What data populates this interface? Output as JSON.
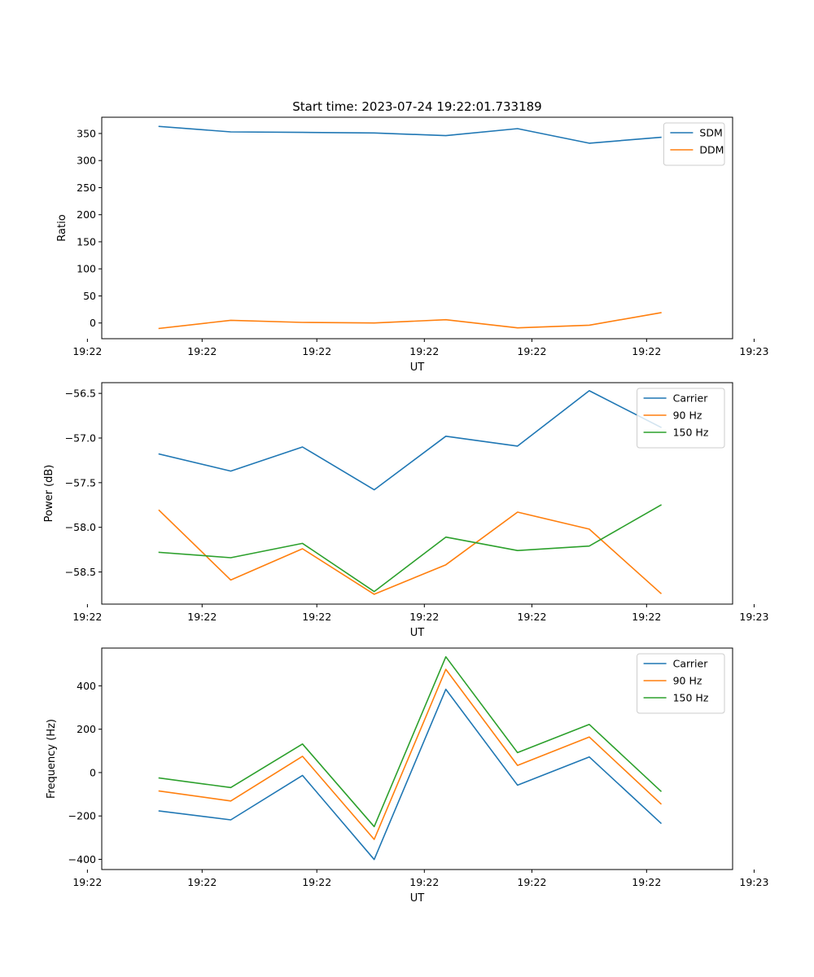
{
  "figure": {
    "title": "Start time: 2023-07-24 19:22:01.733189"
  },
  "colors": {
    "c0": "#1f77b4",
    "c1": "#ff7f0e",
    "c2": "#2ca02c"
  },
  "chart_data": [
    {
      "type": "line",
      "title": "Start time: 2023-07-24 19:22:01.733189",
      "xlabel": "UT",
      "ylabel": "Ratio",
      "x": [
        1,
        2,
        3,
        4,
        5,
        6,
        7,
        8
      ],
      "xlim": [
        0.2,
        9.0
      ],
      "xticks": [
        0.0,
        1.6,
        3.2,
        4.7,
        6.2,
        7.8,
        9.3
      ],
      "xticklabels": [
        "19:22",
        "19:22",
        "19:22",
        "19:22",
        "19:22",
        "19:22",
        "19:23"
      ],
      "ylim": [
        -29,
        380
      ],
      "yticks": [
        0,
        50,
        100,
        150,
        200,
        250,
        300,
        350
      ],
      "yticklabels": [
        "0",
        "50",
        "100",
        "150",
        "200",
        "250",
        "300",
        "350"
      ],
      "legend_position": "upper right",
      "series": [
        {
          "name": "SDM",
          "color": "#1f77b4",
          "values": [
            363,
            353,
            352,
            351,
            346,
            359,
            332,
            343
          ]
        },
        {
          "name": "DDM",
          "color": "#ff7f0e",
          "values": [
            -10,
            5,
            1,
            0,
            6,
            -9,
            -4,
            19
          ]
        }
      ]
    },
    {
      "type": "line",
      "title": "",
      "xlabel": "UT",
      "ylabel": "Power (dB)",
      "x": [
        1,
        2,
        3,
        4,
        5,
        6,
        7,
        8
      ],
      "xlim": [
        0.2,
        9.0
      ],
      "xticks": [
        0.0,
        1.6,
        3.2,
        4.7,
        6.2,
        7.8,
        9.3
      ],
      "xticklabels": [
        "19:22",
        "19:22",
        "19:22",
        "19:22",
        "19:22",
        "19:22",
        "19:23"
      ],
      "ylim": [
        -58.86,
        -56.38
      ],
      "yticks": [
        -58.5,
        -58.0,
        -57.5,
        -57.0,
        -56.5
      ],
      "yticklabels": [
        "−58.5",
        "−58.0",
        "−57.5",
        "−57.0",
        "−56.5"
      ],
      "legend_position": "upper right",
      "series": [
        {
          "name": "Carrier",
          "color": "#1f77b4",
          "values": [
            -57.18,
            -57.37,
            -57.1,
            -57.58,
            -56.98,
            -57.09,
            -56.47,
            -56.88
          ]
        },
        {
          "name": "90 Hz",
          "color": "#ff7f0e",
          "values": [
            -57.81,
            -58.59,
            -58.24,
            -58.75,
            -58.42,
            -57.83,
            -58.02,
            -58.74
          ]
        },
        {
          "name": "150 Hz",
          "color": "#2ca02c",
          "values": [
            -58.28,
            -58.34,
            -58.18,
            -58.72,
            -58.11,
            -58.26,
            -58.21,
            -57.75
          ]
        }
      ]
    },
    {
      "type": "line",
      "title": "",
      "xlabel": "UT",
      "ylabel": "Frequency (Hz)",
      "x": [
        1,
        2,
        3,
        4,
        5,
        6,
        7,
        8
      ],
      "xlim": [
        0.2,
        9.0
      ],
      "xticks": [
        0.0,
        1.6,
        3.2,
        4.7,
        6.2,
        7.8,
        9.3
      ],
      "xticklabels": [
        "19:22",
        "19:22",
        "19:22",
        "19:22",
        "19:22",
        "19:22",
        "19:23"
      ],
      "ylim": [
        -447,
        574
      ],
      "yticks": [
        -400,
        -200,
        0,
        200,
        400
      ],
      "yticklabels": [
        "−400",
        "−200",
        "0",
        "200",
        "400"
      ],
      "legend_position": "upper right",
      "series": [
        {
          "name": "Carrier",
          "color": "#1f77b4",
          "values": [
            -177,
            -218,
            -13,
            -401,
            384,
            -58,
            72,
            -233
          ]
        },
        {
          "name": "90 Hz",
          "color": "#ff7f0e",
          "values": [
            -85,
            -131,
            75,
            -308,
            476,
            33,
            164,
            -144
          ]
        },
        {
          "name": "150 Hz",
          "color": "#2ca02c",
          "values": [
            -25,
            -69,
            132,
            -249,
            534,
            92,
            222,
            -86
          ]
        }
      ]
    }
  ]
}
